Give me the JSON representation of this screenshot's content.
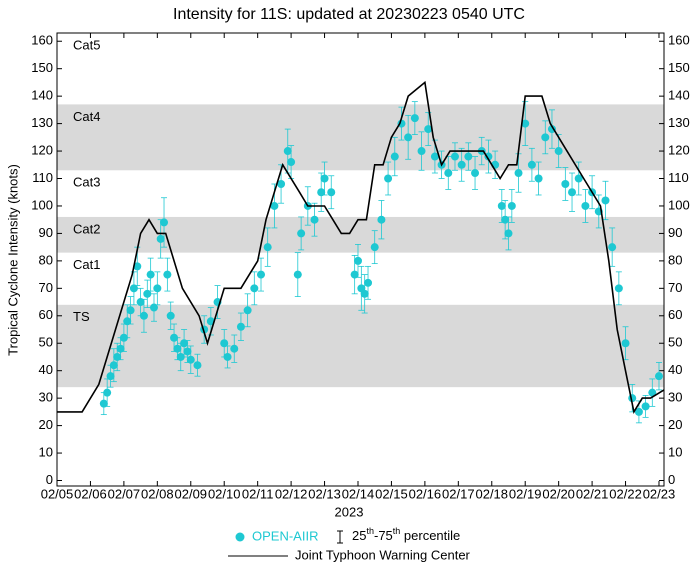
{
  "chart_data": {
    "type": "scatter",
    "title": "Intensity for 11S: updated at 20230223 0540 UTC",
    "x_label": "2023",
    "y_label": "Tropical Cyclone Intensity (knots)",
    "xlim": [
      0,
      18.15
    ],
    "xticks": [
      {
        "value": 0,
        "label": "02/05"
      },
      {
        "value": 1,
        "label": "02/06"
      },
      {
        "value": 2,
        "label": "02/07"
      },
      {
        "value": 3,
        "label": "02/08"
      },
      {
        "value": 4,
        "label": "02/09"
      },
      {
        "value": 5,
        "label": "02/10"
      },
      {
        "value": 6,
        "label": "02/11"
      },
      {
        "value": 7,
        "label": "02/12"
      },
      {
        "value": 8,
        "label": "02/13"
      },
      {
        "value": 9,
        "label": "02/14"
      },
      {
        "value": 10,
        "label": "02/15"
      },
      {
        "value": 11,
        "label": "02/16"
      },
      {
        "value": 12,
        "label": "02/17"
      },
      {
        "value": 13,
        "label": "02/18"
      },
      {
        "value": 14,
        "label": "02/19"
      },
      {
        "value": 15,
        "label": "02/20"
      },
      {
        "value": 16,
        "label": "02/21"
      },
      {
        "value": 17,
        "label": "02/22"
      },
      {
        "value": 18,
        "label": "02/23"
      }
    ],
    "ylim": [
      -2,
      163
    ],
    "yticks": [
      0,
      10,
      20,
      30,
      40,
      50,
      60,
      70,
      80,
      90,
      100,
      110,
      120,
      130,
      140,
      150,
      160
    ],
    "y2lim": [
      -2,
      163
    ],
    "y2ticks": [
      0,
      10,
      20,
      30,
      40,
      50,
      60,
      70,
      80,
      90,
      100,
      110,
      120,
      130,
      140,
      150,
      160
    ],
    "intensity_bands": [
      {
        "label": "TS",
        "min": 34,
        "max": 64,
        "shaded": true
      },
      {
        "label": "Cat1",
        "min": 64,
        "max": 83,
        "shaded": false
      },
      {
        "label": "Cat2",
        "min": 83,
        "max": 96,
        "shaded": true
      },
      {
        "label": "Cat3",
        "min": 96,
        "max": 113,
        "shaded": false
      },
      {
        "label": "Cat4",
        "min": 113,
        "max": 137,
        "shaded": true
      },
      {
        "label": "Cat5",
        "min": 137,
        "max": 163,
        "shaded": false
      }
    ],
    "band_color": "#d9d9d9",
    "series": [
      {
        "name": "OPEN-AIIR",
        "kind": "scatter",
        "color": "#1ec8d2",
        "x": [
          1.4,
          1.5,
          1.6,
          1.7,
          1.8,
          1.9,
          2.0,
          2.1,
          2.2,
          2.3,
          2.4,
          2.5,
          2.6,
          2.7,
          2.8,
          2.9,
          3.0,
          3.1,
          3.2,
          3.3,
          3.4,
          3.5,
          3.6,
          3.7,
          3.8,
          3.9,
          4.0,
          4.2,
          4.4,
          4.6,
          4.8,
          5.0,
          5.1,
          5.3,
          5.5,
          5.7,
          5.9,
          6.1,
          6.3,
          6.5,
          6.7,
          6.9,
          7.0,
          7.2,
          7.3,
          7.5,
          7.7,
          7.9,
          8.0,
          8.2,
          8.9,
          9.0,
          9.1,
          9.2,
          9.3,
          9.5,
          9.7,
          9.9,
          10.1,
          10.3,
          10.5,
          10.7,
          10.9,
          11.1,
          11.3,
          11.5,
          11.7,
          11.9,
          12.1,
          12.3,
          12.5,
          12.7,
          12.9,
          13.1,
          13.3,
          13.4,
          13.5,
          13.6,
          13.8,
          14.0,
          14.2,
          14.4,
          14.6,
          14.8,
          15.0,
          15.2,
          15.4,
          15.6,
          15.8,
          16.0,
          16.2,
          16.4,
          16.6,
          16.8,
          17.0,
          17.2,
          17.4,
          17.6,
          17.8,
          18.0
        ],
        "values": [
          28,
          32,
          38,
          42,
          45,
          48,
          52,
          58,
          62,
          70,
          78,
          65,
          60,
          68,
          75,
          63,
          70,
          88,
          94,
          75,
          60,
          52,
          48,
          45,
          50,
          47,
          44,
          42,
          55,
          58,
          65,
          50,
          45,
          48,
          56,
          62,
          70,
          75,
          85,
          100,
          108,
          120,
          116,
          75,
          90,
          100,
          95,
          105,
          110,
          105,
          75,
          80,
          70,
          68,
          72,
          85,
          95,
          110,
          118,
          130,
          125,
          132,
          120,
          128,
          118,
          115,
          112,
          118,
          115,
          118,
          112,
          120,
          118,
          115,
          100,
          95,
          90,
          100,
          112,
          130,
          115,
          110,
          125,
          128,
          120,
          108,
          105,
          110,
          100,
          105,
          98,
          102,
          85,
          70,
          50,
          30,
          25,
          27,
          32,
          38
        ],
        "errors": [
          4,
          5,
          4,
          6,
          5,
          4,
          5,
          6,
          5,
          6,
          7,
          5,
          6,
          5,
          6,
          5,
          6,
          7,
          9,
          6,
          5,
          5,
          4,
          5,
          5,
          4,
          5,
          4,
          5,
          5,
          6,
          5,
          4,
          5,
          5,
          6,
          6,
          6,
          7,
          8,
          7,
          8,
          6,
          8,
          6,
          7,
          6,
          7,
          6,
          6,
          7,
          6,
          8,
          7,
          6,
          6,
          7,
          6,
          7,
          6,
          8,
          6,
          7,
          6,
          6,
          5,
          6,
          5,
          6,
          5,
          6,
          5,
          6,
          5,
          6,
          7,
          6,
          6,
          7,
          8,
          6,
          6,
          6,
          7,
          6,
          6,
          7,
          6,
          6,
          6,
          6,
          7,
          7,
          6,
          6,
          5,
          4,
          4,
          5,
          5
        ]
      },
      {
        "name": "Joint Typhoon Warning Center",
        "kind": "line",
        "color": "#000000",
        "x": [
          0,
          0.75,
          1.25,
          1.75,
          2.25,
          2.5,
          2.75,
          3,
          3.25,
          3.75,
          4.25,
          4.5,
          5,
          5.5,
          5.75,
          6,
          6.25,
          6.75,
          7.25,
          7.5,
          8,
          8.25,
          8.5,
          8.75,
          9,
          9.25,
          9.5,
          9.75,
          10,
          10.25,
          10.5,
          11,
          11.25,
          11.5,
          11.75,
          12,
          12.5,
          12.75,
          13,
          13.25,
          13.5,
          13.75,
          14,
          14.5,
          14.75,
          15.25,
          15.75,
          16.25,
          16.5,
          16.75,
          17,
          17.25,
          17.5,
          17.75,
          18.15
        ],
        "values": [
          25,
          25,
          35,
          55,
          75,
          90,
          95,
          90,
          90,
          70,
          60,
          50,
          70,
          70,
          75,
          80,
          95,
          115,
          105,
          100,
          100,
          95,
          90,
          90,
          95,
          95,
          115,
          115,
          125,
          130,
          140,
          145,
          125,
          115,
          120,
          120,
          120,
          120,
          115,
          110,
          115,
          115,
          140,
          140,
          130,
          120,
          110,
          100,
          80,
          55,
          40,
          25,
          30,
          30,
          33
        ]
      }
    ],
    "legend_percentile_label": [
      "25",
      "th",
      "-75",
      "th",
      " percentile"
    ]
  }
}
